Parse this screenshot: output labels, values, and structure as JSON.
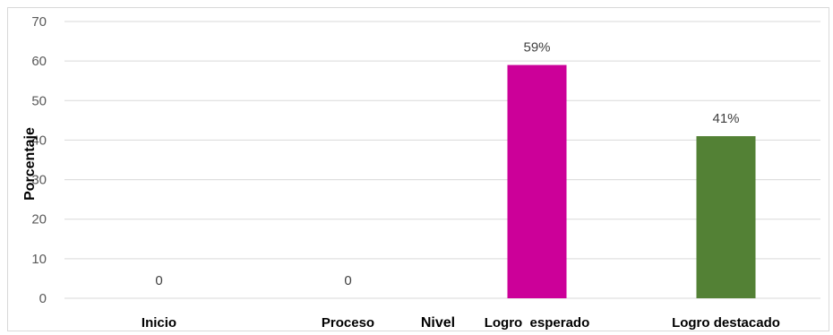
{
  "chart_data": {
    "type": "bar",
    "categories": [
      "Inicio",
      "Proceso",
      "Logro  esperado",
      "Logro destacado"
    ],
    "values": [
      0,
      0,
      59,
      41
    ],
    "data_labels": [
      "0",
      "0",
      "59%",
      "41%"
    ],
    "bar_colors": [
      "#7f7f7f",
      "#7f7f7f",
      "#cc0099",
      "#538135"
    ],
    "xlabel": "Nivel",
    "ylabel": "Porcentaje",
    "ylim": [
      0,
      70
    ],
    "yticks": [
      0,
      10,
      20,
      30,
      40,
      50,
      60,
      70
    ],
    "grid": true,
    "legend": "none"
  }
}
